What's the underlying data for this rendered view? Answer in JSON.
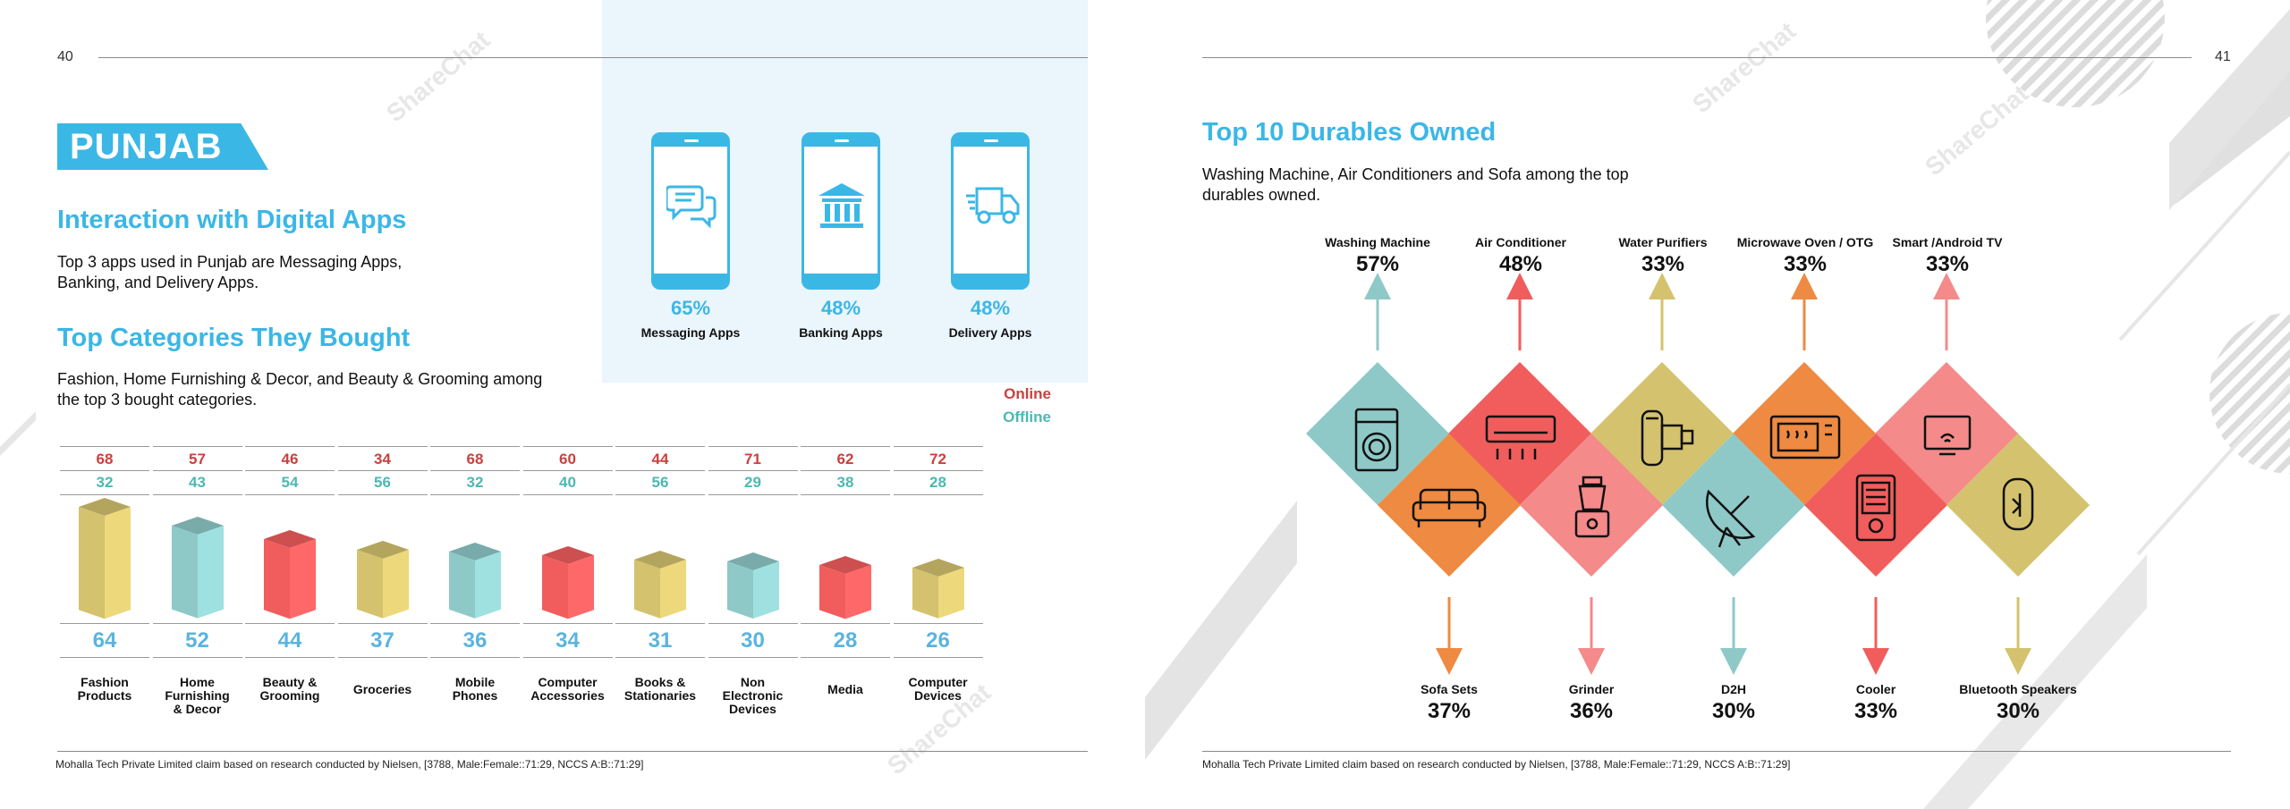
{
  "colors": {
    "accent": "#3bb7e6",
    "online": "#c9413f",
    "offline": "#4db8b2",
    "total": "#5bb4de",
    "teal": "#8ec9c8",
    "red": "#f15d5d",
    "olive": "#d4c26e",
    "orange": "#ee8a41",
    "pink": "#f48a8a"
  },
  "left_page": {
    "page_number": "40",
    "state_badge": "PUNJAB",
    "section1_title": "Interaction with Digital Apps",
    "section1_text_l1": "Top 3 apps used in Punjab are Messaging Apps,",
    "section1_text_l2": "Banking, and Delivery Apps.",
    "apps": [
      {
        "percent": "65%",
        "name": "Messaging Apps",
        "icon": "chat-bubbles-icon"
      },
      {
        "percent": "48%",
        "name": "Banking Apps",
        "icon": "bank-icon"
      },
      {
        "percent": "48%",
        "name": "Delivery Apps",
        "icon": "delivery-truck-icon"
      }
    ],
    "section2_title": "Top Categories They Bought",
    "section2_text_l1": "Fashion, Home Furnishing & Decor, and Beauty & Grooming among",
    "section2_text_l2": "the top 3 bought categories.",
    "legend_online": "Online",
    "legend_offline": "Offline",
    "footnote": "Mohalla Tech Private Limited claim based on research conducted by Nielsen, [3788, Male:Female::71:29, NCCS A:B::71:29]"
  },
  "chart_data": {
    "type": "bar",
    "categories": [
      "Fashion Products",
      "Home Furnishing & Decor",
      "Beauty & Grooming",
      "Groceries",
      "Mobile Phones",
      "Computer Accessories",
      "Books & Stationaries",
      "Non Electronic Devices",
      "Media",
      "Computer Devices"
    ],
    "category_lines": [
      [
        "Fashion",
        "Products"
      ],
      [
        "Home",
        "Furnishing",
        "& Decor"
      ],
      [
        "Beauty &",
        "Grooming"
      ],
      [
        "Groceries"
      ],
      [
        "Mobile",
        "Phones"
      ],
      [
        "Computer",
        "Accessories"
      ],
      [
        "Books &",
        "Stationaries"
      ],
      [
        "Non",
        "Electronic",
        "Devices"
      ],
      [
        "Media"
      ],
      [
        "Computer",
        "Devices"
      ]
    ],
    "values": [
      64,
      52,
      44,
      37,
      36,
      34,
      31,
      30,
      28,
      26
    ],
    "online": [
      68,
      57,
      46,
      34,
      68,
      60,
      44,
      71,
      62,
      72
    ],
    "offline": [
      32,
      43,
      54,
      56,
      32,
      40,
      56,
      29,
      38,
      28
    ],
    "bar_colors": [
      "olive",
      "teal",
      "red",
      "olive",
      "teal",
      "red",
      "olive",
      "teal",
      "red",
      "olive"
    ],
    "series": [
      {
        "name": "Online",
        "values": [
          68,
          57,
          46,
          34,
          68,
          60,
          44,
          71,
          62,
          72
        ]
      },
      {
        "name": "Offline",
        "values": [
          32,
          43,
          54,
          56,
          32,
          40,
          56,
          29,
          38,
          28
        ]
      }
    ]
  },
  "right_page": {
    "page_number": "41",
    "title": "Top 10 Durables Owned",
    "text_l1": "Washing Machine, Air Conditioners and Sofa among the top",
    "text_l2": "durables owned.",
    "durables_top": [
      {
        "name": "Washing Machine",
        "percent": "57%",
        "icon": "washing-machine-icon",
        "color": "teal"
      },
      {
        "name": "Air Conditioner",
        "percent": "48%",
        "icon": "air-conditioner-icon",
        "color": "red"
      },
      {
        "name": "Water Purifiers",
        "percent": "33%",
        "icon": "water-purifier-icon",
        "color": "olive"
      },
      {
        "name": "Microwave Oven / OTG",
        "percent": "33%",
        "icon": "microwave-icon",
        "color": "orange"
      },
      {
        "name": "Smart /Android TV",
        "percent": "33%",
        "icon": "tv-icon",
        "color": "pink"
      }
    ],
    "durables_bottom": [
      {
        "name": "Sofa Sets",
        "percent": "37%",
        "icon": "sofa-icon",
        "color": "orange"
      },
      {
        "name": "Grinder",
        "percent": "36%",
        "icon": "grinder-icon",
        "color": "pink"
      },
      {
        "name": "D2H",
        "percent": "30%",
        "icon": "satellite-dish-icon",
        "color": "teal"
      },
      {
        "name": "Cooler",
        "percent": "33%",
        "icon": "cooler-icon",
        "color": "red"
      },
      {
        "name": "Bluetooth Speakers",
        "percent": "30%",
        "icon": "speaker-icon",
        "color": "olive"
      }
    ],
    "footnote": "Mohalla Tech Private Limited claim based on research conducted by Nielsen, [3788, Male:Female::71:29, NCCS A:B::71:29]"
  },
  "watermark": "ShareChat"
}
